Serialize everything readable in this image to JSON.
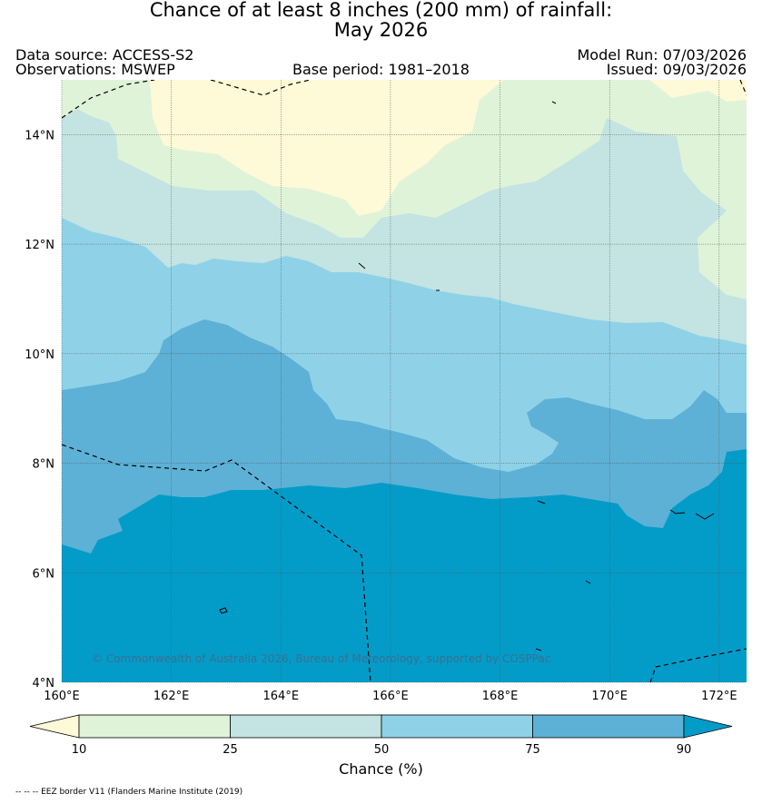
{
  "title": {
    "line1": "Chance of at least 8 inches (200  mm) of rainfall:",
    "line2": "May 2026"
  },
  "header": {
    "data_source": "Data source: ACCESS-S2",
    "observations": "Observations: MSWEP",
    "base_period": "Base period: 1981–2018",
    "model_run": "Model Run: 07/03/2026",
    "issued": "Issued: 09/03/2026"
  },
  "map": {
    "lat_range": [
      4,
      15
    ],
    "lon_range": [
      160,
      172.5
    ],
    "lat_ticks": [
      {
        "value": 14,
        "label": "14°N"
      },
      {
        "value": 12,
        "label": "12°N"
      },
      {
        "value": 10,
        "label": "10°N"
      },
      {
        "value": 8,
        "label": "8°N"
      },
      {
        "value": 6,
        "label": "6°N"
      },
      {
        "value": 4,
        "label": "4°N"
      }
    ],
    "lon_ticks": [
      {
        "value": 160,
        "label": "160°E"
      },
      {
        "value": 162,
        "label": "162°E"
      },
      {
        "value": 164,
        "label": "164°E"
      },
      {
        "value": 166,
        "label": "166°E"
      },
      {
        "value": 168,
        "label": "168°E"
      },
      {
        "value": 170,
        "label": "170°E"
      },
      {
        "value": 172,
        "label": "172°E"
      }
    ],
    "copyright": "© Commonwealth of Australia 2026, Bureau of Meteorology, supported by COSPPac"
  },
  "colorbar": {
    "ticks": [
      "10",
      "25",
      "50",
      "75",
      "90"
    ],
    "label": "Chance (%)",
    "colors": {
      "below_10": "#fef9d6",
      "c10_25": "#dff3d9",
      "c25_50": "#c3e4e2",
      "c50_75": "#8fd2e8",
      "c75_90": "#5db1d6",
      "above_90": "#039cc9"
    }
  },
  "footnote": "-- -- -- EEZ border V11 (Flanders Marine Institute (2019)"
}
